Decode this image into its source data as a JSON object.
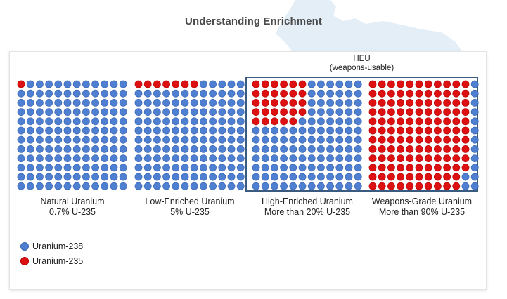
{
  "page_title": "Understanding Enrichment",
  "heu_label": {
    "line1": "HEU",
    "line2": "(weapons-usable)"
  },
  "colors": {
    "u238": "#4f7fd1",
    "u238_edge": "#3462b0",
    "u235": "#dd1111",
    "u235_edge": "#b30000"
  },
  "chart_data": {
    "type": "waffle",
    "title": "Understanding Enrichment",
    "grid_rows": 12,
    "grid_cols": 12,
    "categories": [
      "Natural Uranium",
      "Low-Enriched Uranium",
      "High-Enriched Uranium",
      "Weapons-Grade Uranium"
    ],
    "captions": [
      "0.7% U-235",
      "5% U-235",
      "More than 20% U-235",
      "More than 90% U-235"
    ],
    "series": [
      {
        "name": "Uranium-235",
        "values": [
          1,
          7,
          29,
          130
        ]
      },
      {
        "name": "Uranium-238",
        "values": [
          143,
          137,
          115,
          14
        ]
      }
    ],
    "legend": [
      {
        "name": "Uranium-238",
        "color": "#4f7fd1"
      },
      {
        "name": "Uranium-235",
        "color": "#dd1111"
      }
    ],
    "legend_position": "bottom-left",
    "highlight_group": {
      "label": "HEU (weapons-usable)",
      "categories": [
        "High-Enriched Uranium",
        "Weapons-Grade Uranium"
      ]
    }
  }
}
